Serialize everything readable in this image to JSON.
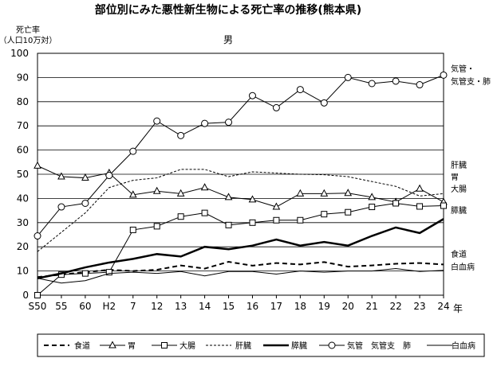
{
  "chart_data": {
    "type": "line",
    "title": "部位別にみた悪性新生物による死亡率の推移(熊本県)",
    "subtitle": "男",
    "ylabel_line1": "死亡率",
    "ylabel_line2": "（人口10万対）",
    "xlabel": "年",
    "ylim": [
      0,
      100
    ],
    "yticks": [
      "0",
      "10",
      "20",
      "30",
      "40",
      "50",
      "60",
      "70",
      "80",
      "90",
      "100"
    ],
    "categories": [
      "S50",
      "55",
      "60",
      "H2",
      "7",
      "12",
      "13",
      "14",
      "15",
      "16",
      "17",
      "18",
      "19",
      "20",
      "21",
      "22",
      "23",
      "24"
    ],
    "grid": "horizontal",
    "legend_position": "bottom",
    "series": [
      {
        "name": "食道",
        "end_label": "食道",
        "style": "dashed",
        "values": [
          7.5,
          8.5,
          9.5,
          10.5,
          10.0,
          10.5,
          12.3,
          11.0,
          13.8,
          12.2,
          13.3,
          12.7,
          13.7,
          11.8,
          12.3,
          13.0,
          13.3,
          12.7
        ]
      },
      {
        "name": "胃",
        "end_label": "胃",
        "style": "triangle",
        "values": [
          53.5,
          49.0,
          48.5,
          50.5,
          41.5,
          43.0,
          42.0,
          44.5,
          40.5,
          39.5,
          36.5,
          42.0,
          42.0,
          42.2,
          40.5,
          38.5,
          44.0,
          38.5
        ]
      },
      {
        "name": "大腸",
        "end_label": "大腸",
        "style": "square",
        "values": [
          0.0,
          8.5,
          9.0,
          9.5,
          27.0,
          28.5,
          32.5,
          34.0,
          29.0,
          30.0,
          31.0,
          31.0,
          33.5,
          34.3,
          36.5,
          38.0,
          36.7,
          37.0
        ]
      },
      {
        "name": "肝臓",
        "end_label": "肝臓",
        "style": "dotted",
        "values": [
          18.0,
          26.0,
          34.0,
          44.5,
          47.5,
          48.5,
          52.0,
          52.0,
          49.0,
          51.0,
          50.5,
          50.0,
          49.8,
          49.0,
          47.0,
          45.0,
          41.0,
          42.0
        ]
      },
      {
        "name": "膵臓",
        "end_label": "膵臓",
        "style": "thick",
        "values": [
          7.0,
          9.0,
          11.5,
          13.5,
          15.0,
          17.0,
          16.0,
          20.0,
          19.0,
          20.5,
          23.0,
          20.5,
          22.0,
          20.5,
          24.5,
          28.0,
          25.7,
          31.5
        ]
      },
      {
        "name": "気管　気管支　肺",
        "end_label_1": "気管・",
        "end_label_2": "気管支・肺",
        "style": "circle",
        "values": [
          24.5,
          36.5,
          38.0,
          49.5,
          59.5,
          72.0,
          66.0,
          71.0,
          71.5,
          82.5,
          77.5,
          85.0,
          79.5,
          90.0,
          87.5,
          88.5,
          87.0,
          91.0
        ]
      },
      {
        "name": "白血病",
        "end_label": "白血病",
        "style": "thin",
        "values": [
          7.0,
          5.0,
          6.0,
          9.0,
          9.5,
          9.0,
          9.8,
          8.0,
          9.8,
          9.8,
          8.7,
          10.0,
          9.5,
          10.0,
          10.0,
          11.0,
          9.8,
          10.3
        ]
      }
    ]
  }
}
